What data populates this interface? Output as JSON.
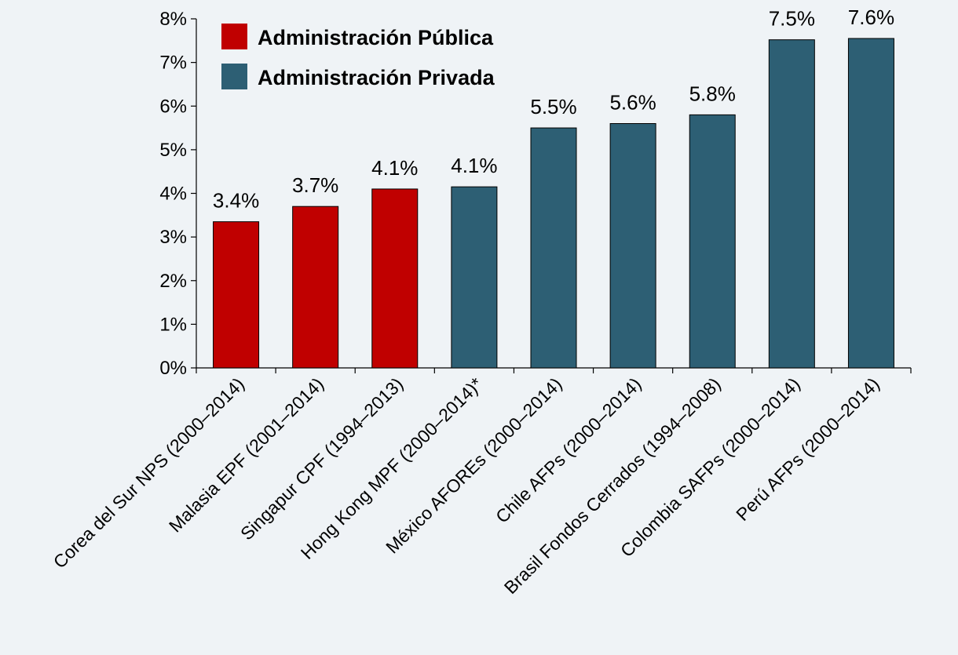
{
  "colors": {
    "publica": "#c00000",
    "privada": "#2d5f74",
    "background": "#eff3f6"
  },
  "legend": {
    "items": [
      {
        "label": "Administración Pública",
        "color": "#c00000"
      },
      {
        "label": "Administración Privada",
        "color": "#2d5f74"
      }
    ],
    "placement": "top-left"
  },
  "chart_data": {
    "type": "bar",
    "title": "",
    "xlabel": "",
    "ylabel": "",
    "ylim": [
      0,
      8
    ],
    "yticks": [
      "0%",
      "1%",
      "2%",
      "3%",
      "4%",
      "5%",
      "6%",
      "7%",
      "8%"
    ],
    "grid": false,
    "categories": [
      "Corea del Sur NPS (2000–2014)",
      "Malasia EPF (2001–2014)",
      "Singapur CPF (1994–2013)",
      "Hong Kong MPF (2000–2014)*",
      "México AFOREs (2000–2014)",
      "Chile AFPs (2000–2014)",
      "Brasil Fondos Cerrados (1994–2008)",
      "Colombia SAFPs (2000–2014)",
      "Perú AFPs (2000–2014)"
    ],
    "values": [
      3.35,
      3.7,
      4.1,
      4.15,
      5.5,
      5.6,
      5.8,
      7.52,
      7.55
    ],
    "data_labels": [
      "3.4%",
      "3.7%",
      "4.1%",
      "4.1%",
      "5.5%",
      "5.6%",
      "5.8%",
      "7.5%",
      "7.6%"
    ],
    "bar_group": [
      "publica",
      "publica",
      "publica",
      "privada",
      "privada",
      "privada",
      "privada",
      "privada",
      "privada"
    ]
  }
}
